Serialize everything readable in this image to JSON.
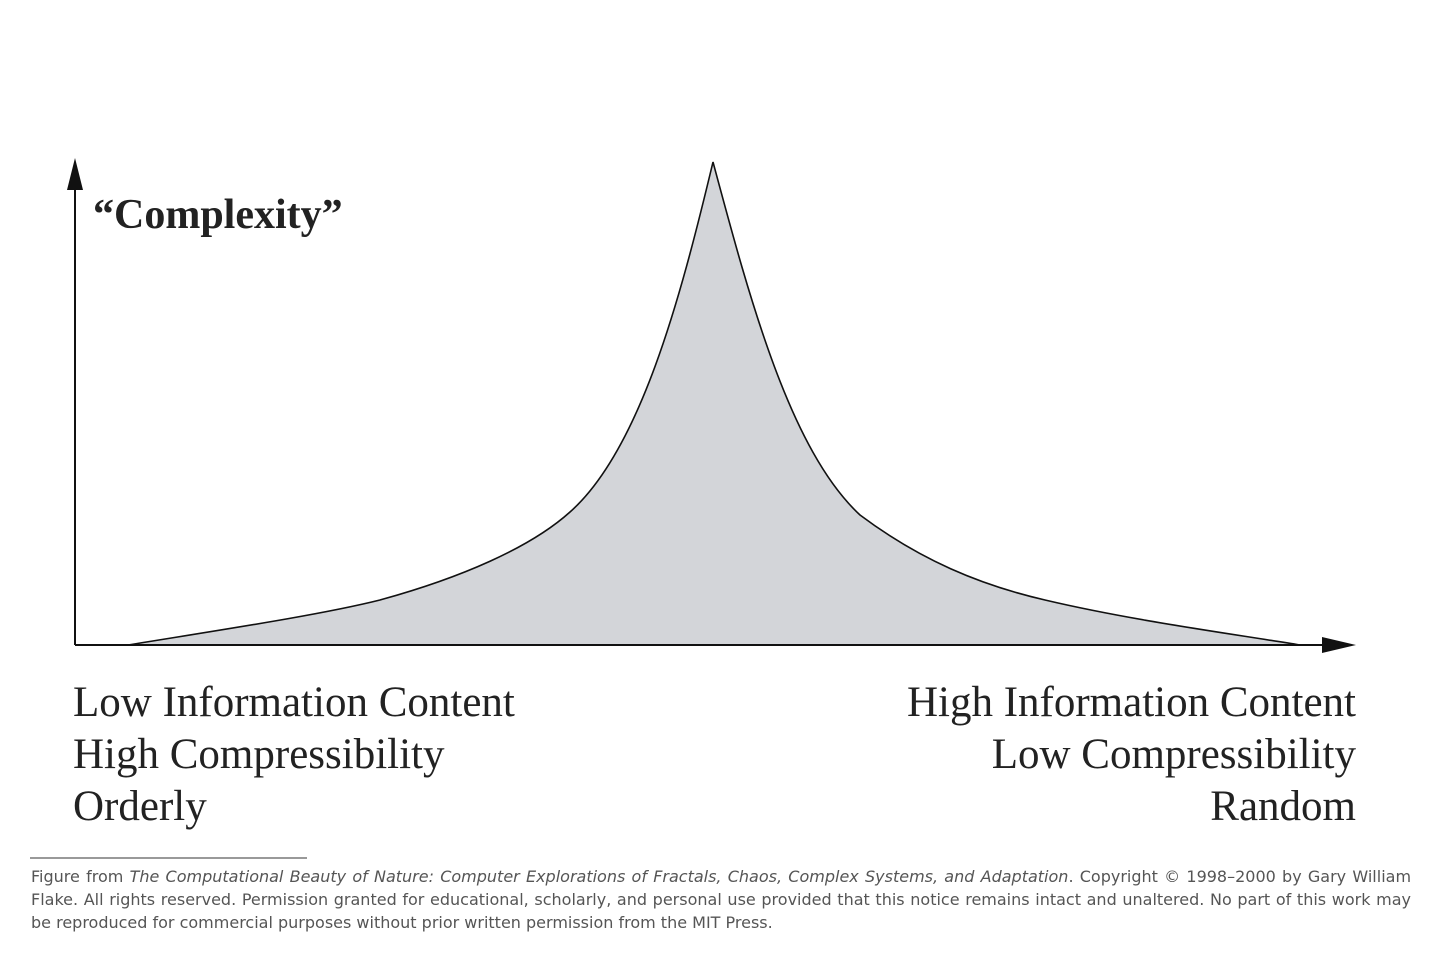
{
  "y_axis_label": "“Complexity”",
  "left_labels": [
    "Low Information Content",
    "High Compressibility",
    "Orderly"
  ],
  "right_labels": [
    "High Information Content",
    "Low Compressibility",
    "Random"
  ],
  "footer": {
    "prefix": "Figure from",
    "book_title": "The Computational Beauty of Nature: Computer Explorations of Fractals, Chaos, Complex Systems, and Adaptation",
    "rest": ". Copyright © 1998–2000 by Gary William Flake. All rights reserved. Permission granted for educational, scholarly, and personal use provided that this notice remains intact and unaltered. No part of this work may be reproduced for commercial purposes without prior written permission from the MIT Press."
  }
}
